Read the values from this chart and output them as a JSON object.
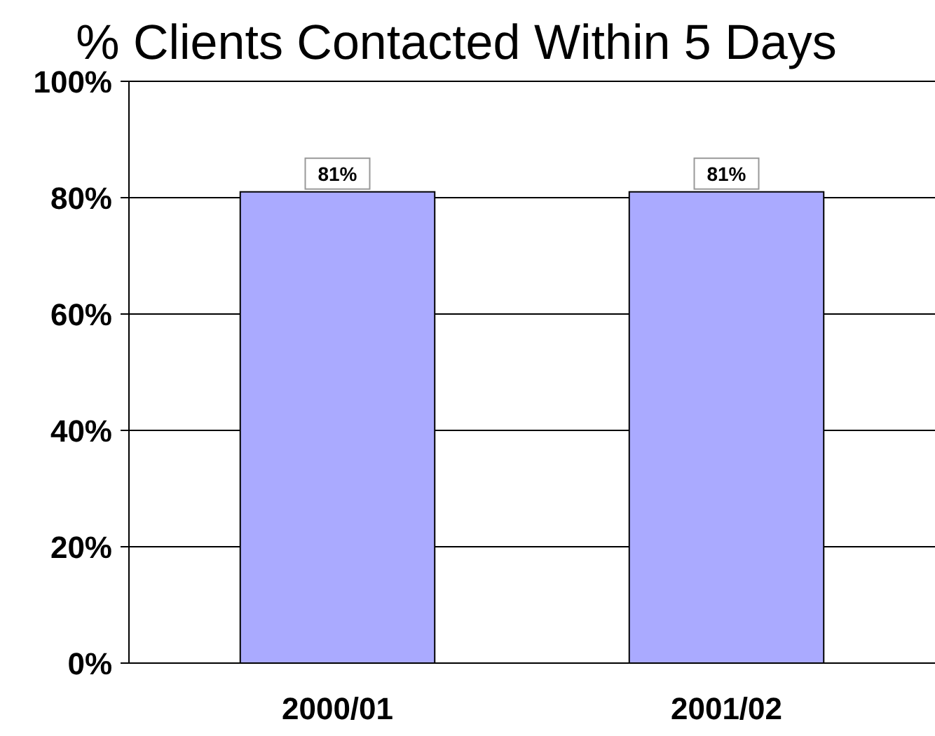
{
  "chart_data": {
    "type": "bar",
    "title": "% Clients Contacted Within 5 Days",
    "categories": [
      "2000/01",
      "2001/02"
    ],
    "values": [
      81,
      81
    ],
    "color": "#aaaaff",
    "value_labels": [
      "81%",
      "81%"
    ],
    "ylim": [
      0,
      100
    ],
    "yticks": [
      {
        "value": 0,
        "label": "0%"
      },
      {
        "value": 20,
        "label": "20%"
      },
      {
        "value": 40,
        "label": "40%"
      },
      {
        "value": 60,
        "label": "60%"
      },
      {
        "value": 80,
        "label": "80%"
      },
      {
        "value": 100,
        "label": "100%"
      }
    ],
    "grid": "y"
  }
}
